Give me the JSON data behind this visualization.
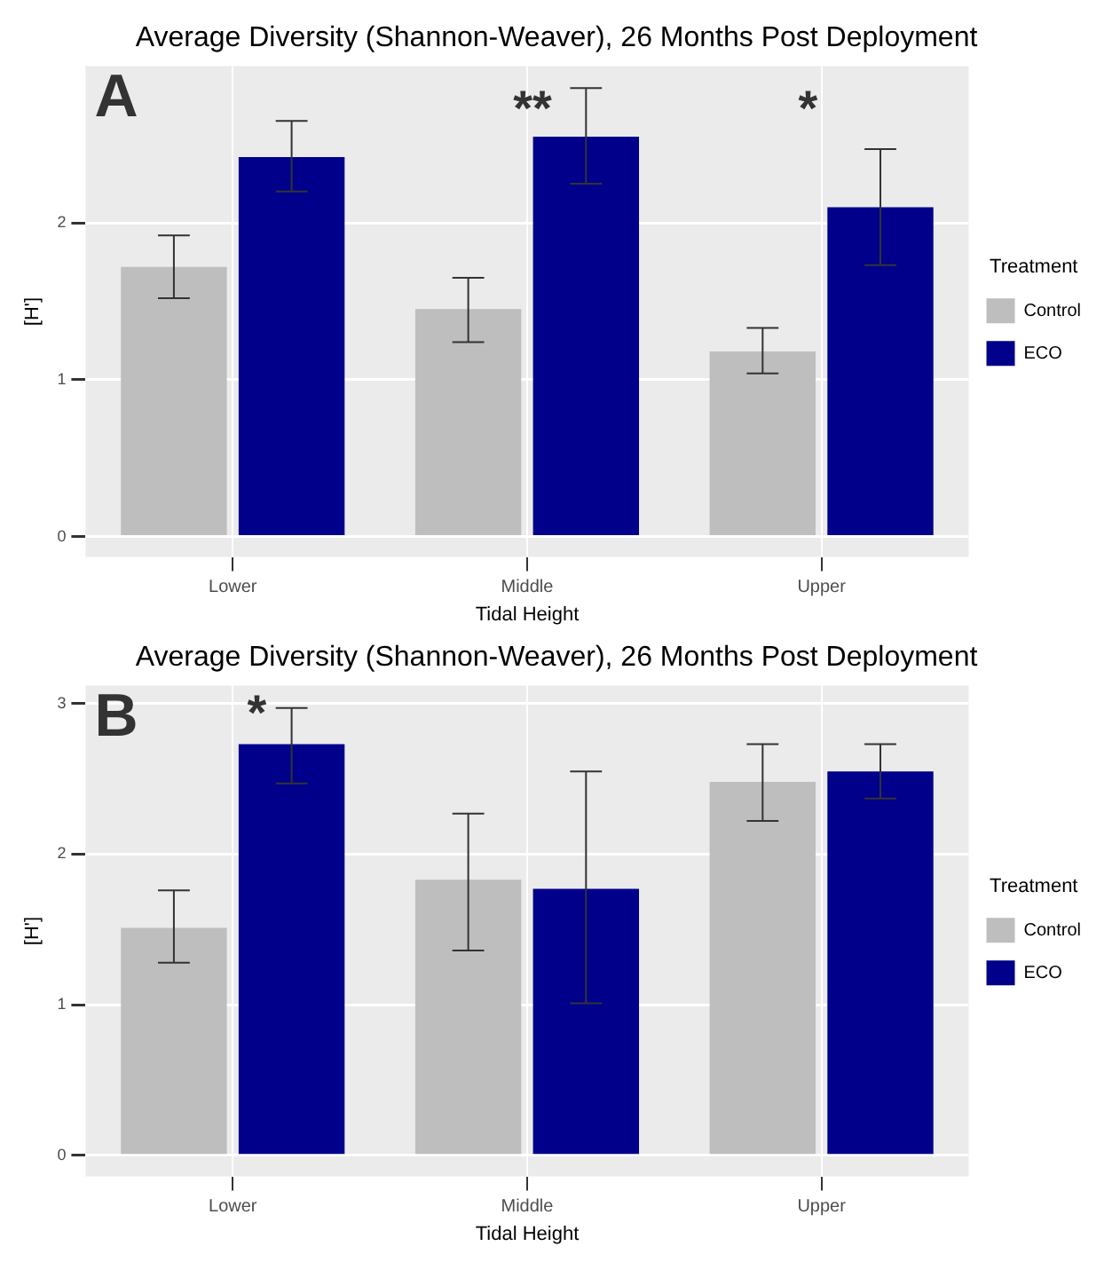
{
  "chart_data": [
    {
      "type": "bar",
      "title": "Average Diversity (Shannon-Weaver), 26 Months Post Deployment",
      "xlabel": "Tidal Height",
      "ylabel": "[H']",
      "legend_title": "Treatment",
      "categories": [
        "Lower",
        "Middle",
        "Upper"
      ],
      "series": [
        {
          "name": "Control",
          "color": "#bebebe",
          "values": [
            1.72,
            1.45,
            1.18
          ],
          "errors": [
            [
              1.52,
              1.92
            ],
            [
              1.24,
              1.65
            ],
            [
              1.04,
              1.33
            ]
          ]
        },
        {
          "name": "ECO",
          "color": "#00008b",
          "values": [
            2.42,
            2.55,
            2.1
          ],
          "errors": [
            [
              2.2,
              2.65
            ],
            [
              2.25,
              2.86
            ],
            [
              1.73,
              2.47
            ]
          ]
        }
      ],
      "ylim": [
        -0.13,
        3.0
      ],
      "yticks": [
        0,
        1,
        2
      ],
      "grid": true,
      "legend": "right",
      "annotations": [
        "A",
        "**",
        "*"
      ]
    },
    {
      "type": "bar",
      "title": "Average Diversity (Shannon-Weaver), 26 Months Post Deployment",
      "xlabel": "Tidal Height",
      "ylabel": "[H']",
      "legend_title": "Treatment",
      "categories": [
        "Lower",
        "Middle",
        "Upper"
      ],
      "series": [
        {
          "name": "Control",
          "color": "#bebebe",
          "values": [
            1.51,
            1.83,
            2.48
          ],
          "errors": [
            [
              1.28,
              1.76
            ],
            [
              1.36,
              2.27
            ],
            [
              2.22,
              2.73
            ]
          ]
        },
        {
          "name": "ECO",
          "color": "#00008b",
          "values": [
            2.73,
            1.77,
            2.55
          ],
          "errors": [
            [
              2.47,
              2.97
            ],
            [
              1.01,
              2.55
            ],
            [
              2.37,
              2.73
            ]
          ]
        }
      ],
      "ylim": [
        -0.14,
        3.12
      ],
      "yticks": [
        0,
        1,
        2,
        3
      ],
      "grid": true,
      "legend": "right",
      "annotations": [
        "B",
        "*"
      ]
    }
  ]
}
